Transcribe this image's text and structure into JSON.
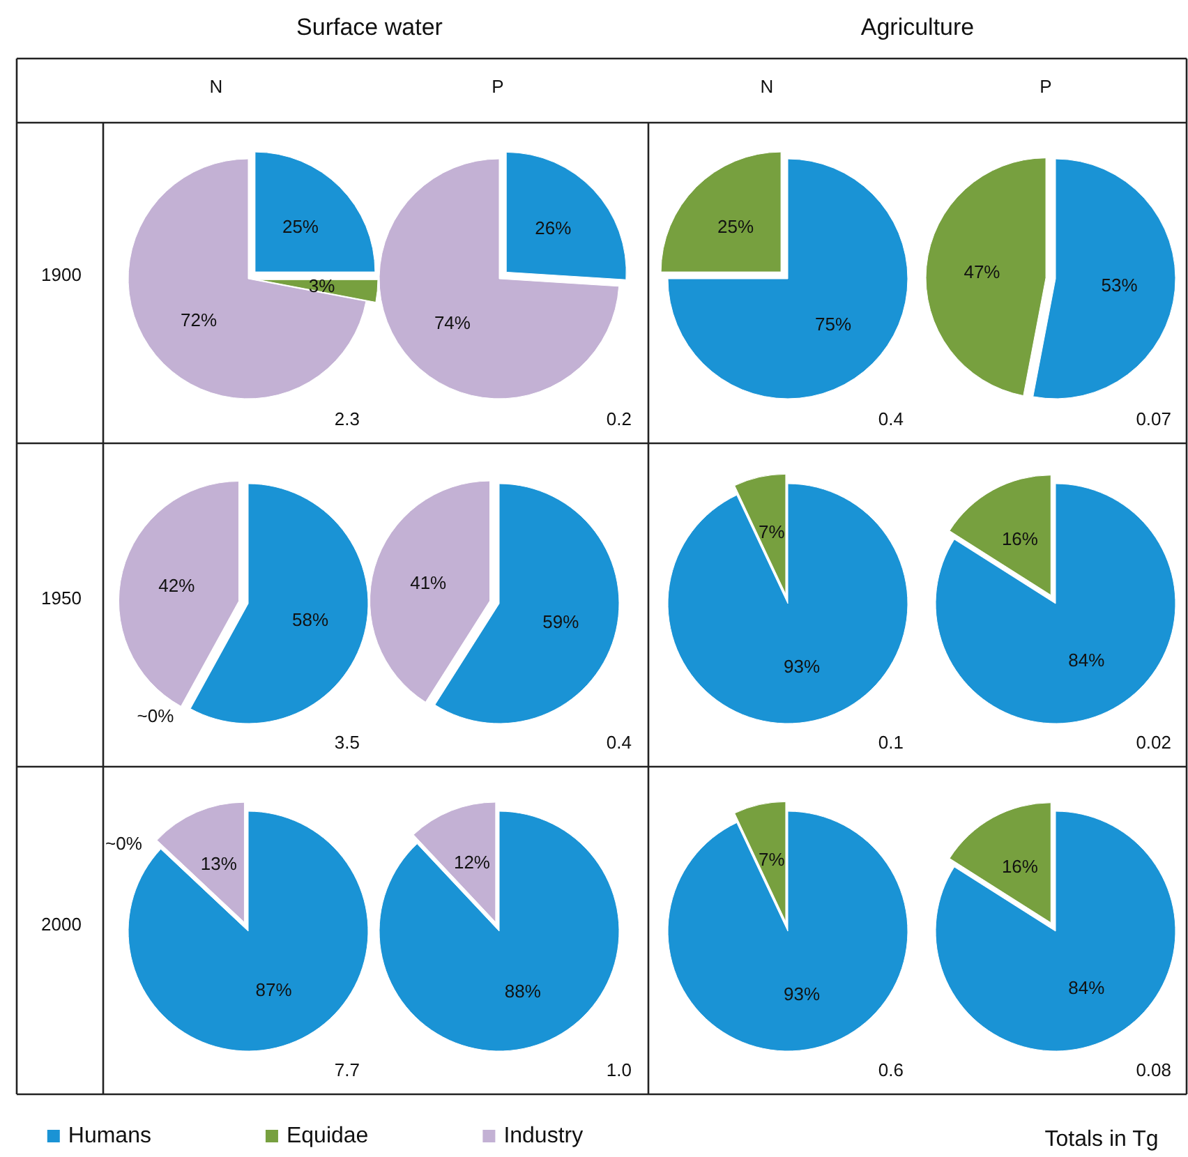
{
  "chart_data": [
    {
      "type": "other",
      "annotations": [
        "Surface water",
        "Agriculture",
        "N",
        "P",
        "N",
        "P",
        "1900",
        "1950",
        "2000",
        "Totals in Tg"
      ]
    },
    {
      "type": "pie",
      "categories": [
        "Humans",
        "Equidae",
        "Industry"
      ],
      "values": [
        25,
        3,
        72
      ],
      "colors": [
        "#1a93d5",
        "#77a03f",
        "#c3b1d4"
      ],
      "value_labels": [
        "25%",
        "3%",
        "72%"
      ],
      "annotations": [
        "2.3"
      ],
      "legend": "bottom"
    },
    {
      "type": "pie",
      "categories": [
        null,
        null
      ],
      "values": [
        26,
        74
      ],
      "colors": [
        "#1a93d5",
        "#c3b1d4"
      ],
      "value_labels": [
        "26%",
        "74%"
      ],
      "annotations": [
        "0.2"
      ]
    },
    {
      "type": "pie",
      "categories": [
        null,
        null
      ],
      "values": [
        75,
        25
      ],
      "colors": [
        "#1a93d5",
        "#77a03f"
      ],
      "value_labels": [
        "75%",
        "25%"
      ],
      "annotations": [
        "0.4"
      ]
    },
    {
      "type": "pie",
      "categories": [
        null,
        null
      ],
      "values": [
        53,
        47
      ],
      "colors": [
        "#1a93d5",
        "#77a03f"
      ],
      "value_labels": [
        "53%",
        "47%"
      ],
      "annotations": [
        "0.07"
      ]
    },
    {
      "type": "pie",
      "categories": [
        null,
        null,
        null
      ],
      "values": [
        58,
        0,
        42
      ],
      "colors": [
        "#1a93d5",
        "#77a03f",
        "#c3b1d4"
      ],
      "value_labels": [
        "58%",
        "~0%",
        "42%"
      ],
      "annotations": [
        "3.5"
      ]
    },
    {
      "type": "pie",
      "categories": [
        null,
        null
      ],
      "values": [
        59,
        41
      ],
      "colors": [
        "#1a93d5",
        "#c3b1d4"
      ],
      "value_labels": [
        "59%",
        "41%"
      ],
      "annotations": [
        "0.4"
      ]
    },
    {
      "type": "pie",
      "categories": [
        null,
        null
      ],
      "values": [
        93,
        7
      ],
      "colors": [
        "#1a93d5",
        "#77a03f"
      ],
      "value_labels": [
        "93%",
        "7%"
      ],
      "annotations": [
        "0.1"
      ]
    },
    {
      "type": "pie",
      "categories": [
        null,
        null
      ],
      "values": [
        84,
        16
      ],
      "colors": [
        "#1a93d5",
        "#77a03f"
      ],
      "value_labels": [
        "84%",
        "16%"
      ],
      "annotations": [
        "0.02"
      ]
    },
    {
      "type": "pie",
      "categories": [
        null,
        null,
        null
      ],
      "values": [
        87,
        0,
        13
      ],
      "colors": [
        "#1a93d5",
        "#77a03f",
        "#c3b1d4"
      ],
      "value_labels": [
        "87%",
        "~0%",
        "13%"
      ],
      "annotations": [
        "7.7"
      ]
    },
    {
      "type": "pie",
      "categories": [
        null,
        null
      ],
      "values": [
        88,
        12
      ],
      "colors": [
        "#1a93d5",
        "#c3b1d4"
      ],
      "value_labels": [
        "88%",
        "12%"
      ],
      "annotations": [
        "1.0"
      ]
    },
    {
      "type": "pie",
      "categories": [
        null,
        null
      ],
      "values": [
        93,
        7
      ],
      "colors": [
        "#1a93d5",
        "#77a03f"
      ],
      "value_labels": [
        "93%",
        "7%"
      ],
      "annotations": [
        "0.6"
      ]
    },
    {
      "type": "pie",
      "categories": [
        null,
        null
      ],
      "values": [
        84,
        16
      ],
      "colors": [
        "#1a93d5",
        "#77a03f"
      ],
      "value_labels": [
        "84%",
        "16%"
      ],
      "annotations": [
        "0.08"
      ]
    }
  ]
}
